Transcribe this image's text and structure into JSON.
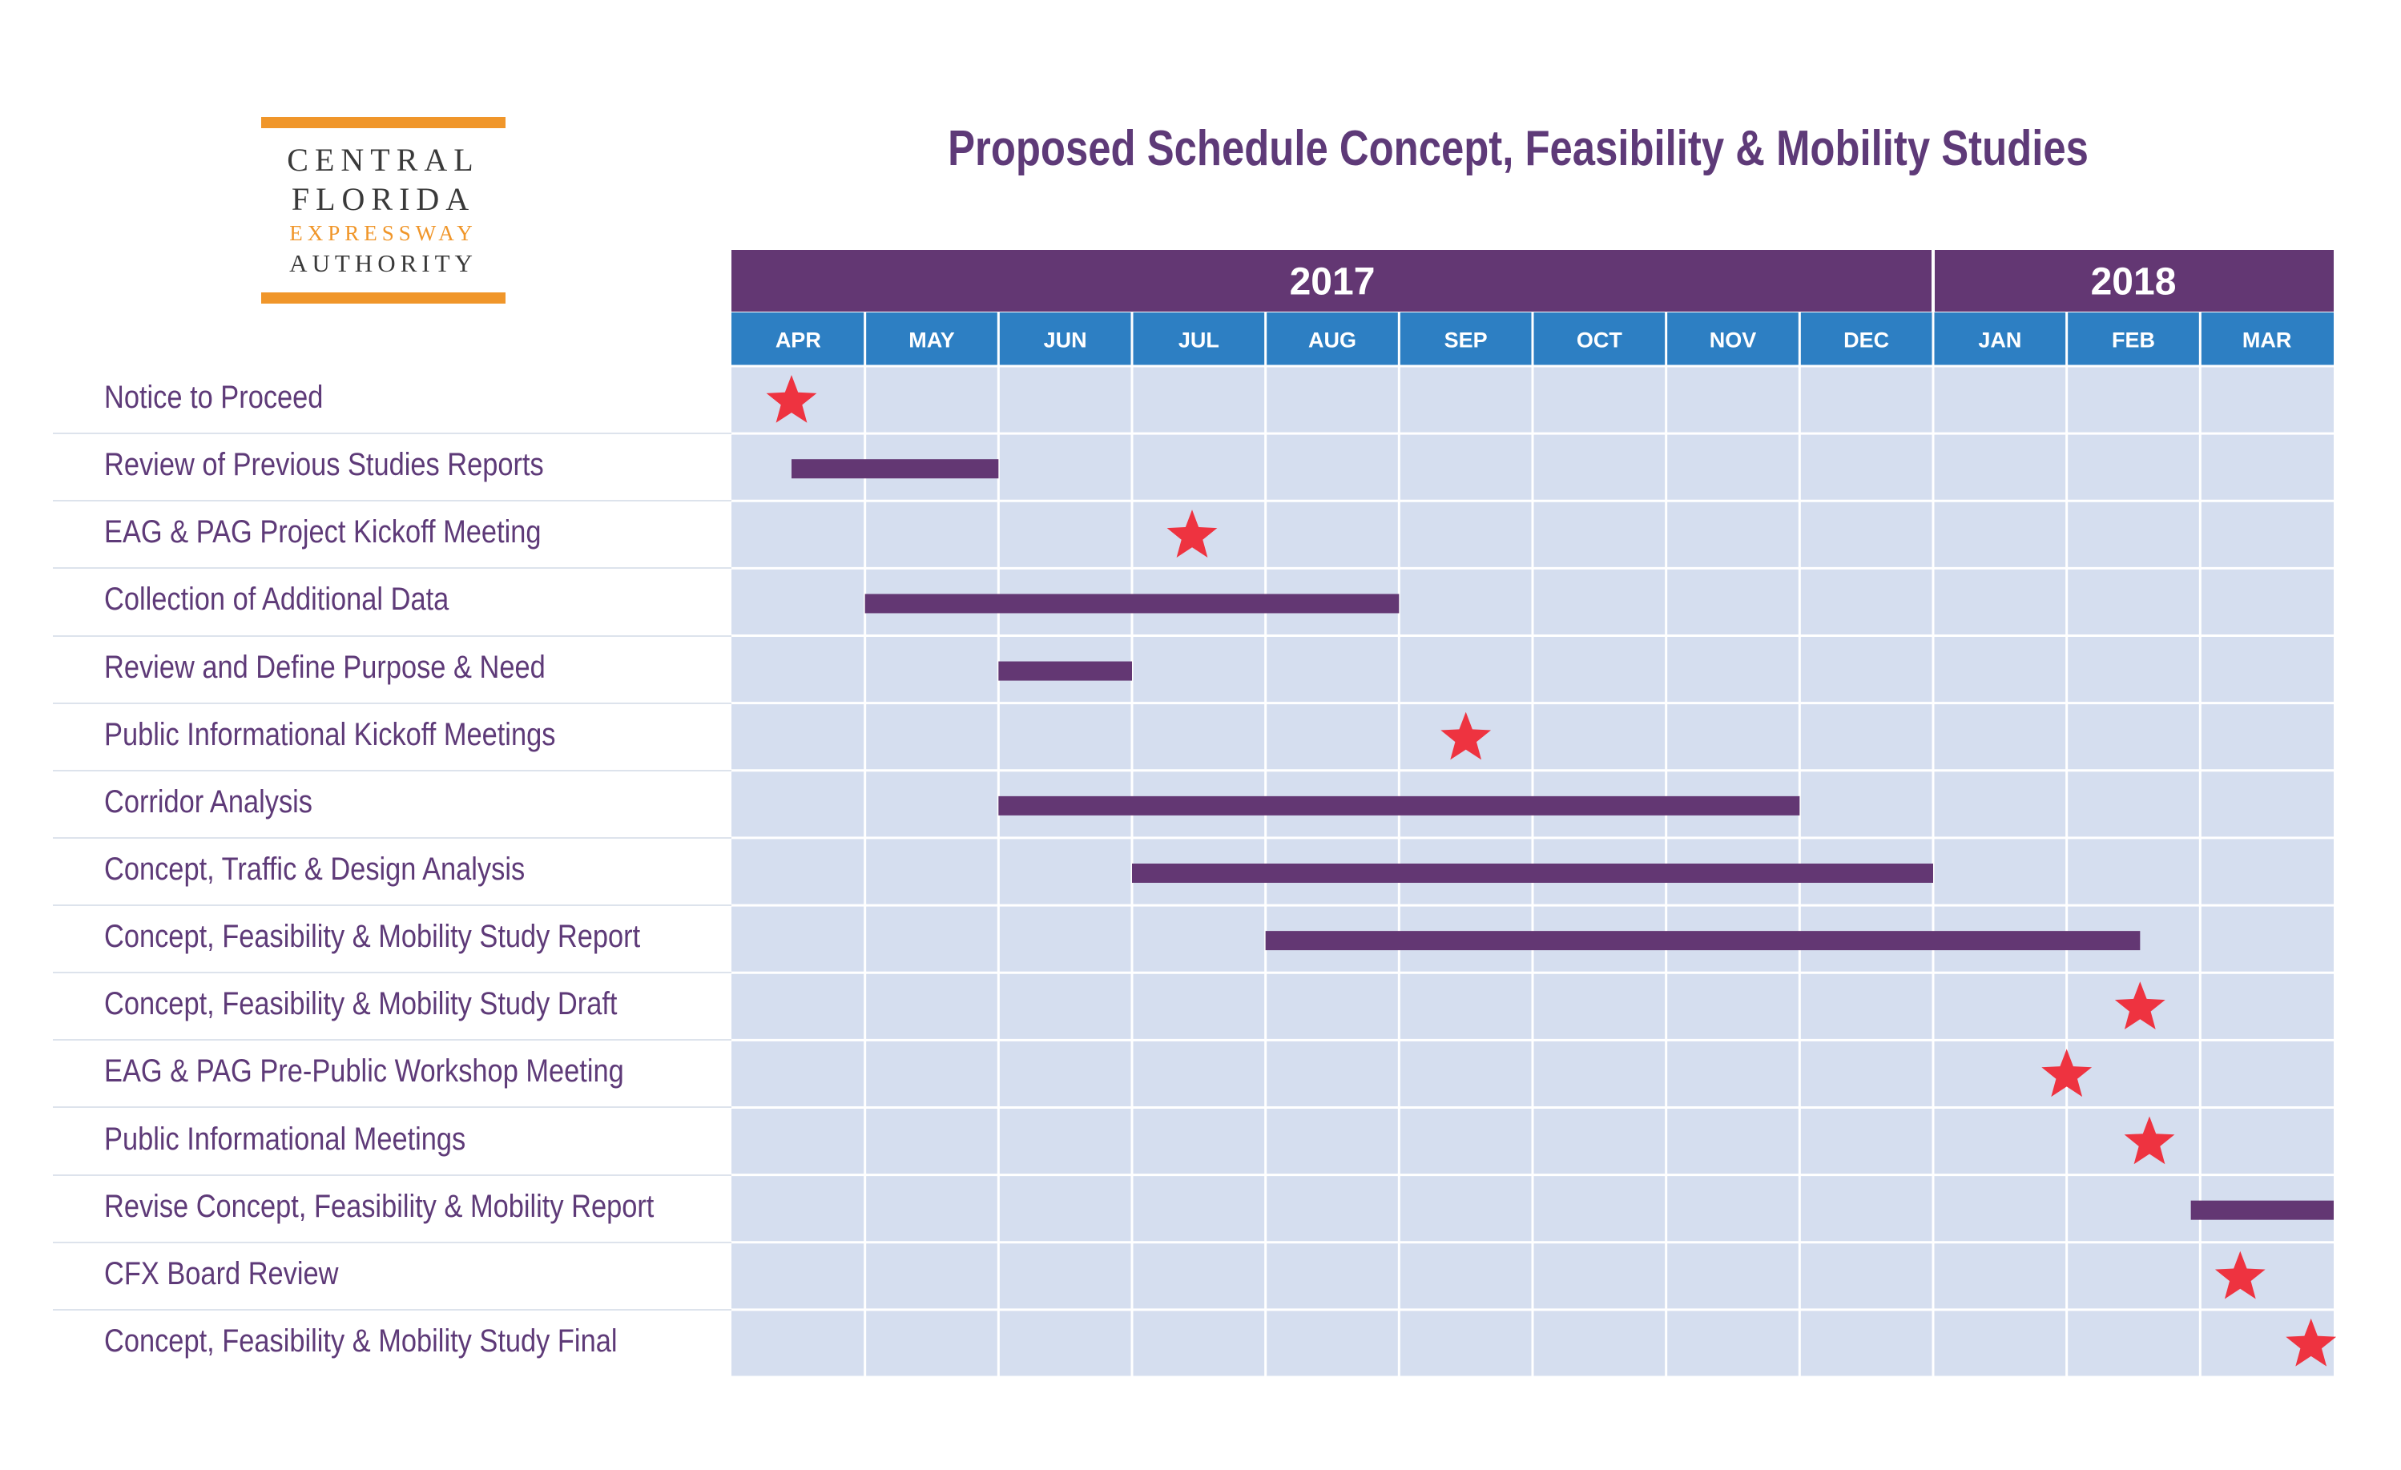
{
  "logo": {
    "line1": "CENTRAL",
    "line2": "FLORIDA",
    "line3": "EXPRESSWAY",
    "line4": "AUTHORITY"
  },
  "colors": {
    "purple": "#633773",
    "header_blue": "#2d7fc3",
    "grid_fill": "#d5deef",
    "grid_line": "#ffffff",
    "star_red": "#ee3340",
    "label_purple": "#5e3a78",
    "logo_orange": "#f0962a"
  },
  "chart_data": {
    "type": "gantt",
    "title": "Proposed Schedule Concept, Feasibility & Mobility Studies",
    "years": [
      {
        "label": "2017",
        "months": 9
      },
      {
        "label": "2018",
        "months": 3
      }
    ],
    "months": [
      "APR",
      "MAY",
      "JUN",
      "JUL",
      "AUG",
      "SEP",
      "OCT",
      "NOV",
      "DEC",
      "JAN",
      "FEB",
      "MAR"
    ],
    "tasks": [
      {
        "name": "Notice to Proceed",
        "type": "milestone",
        "at": 0.45
      },
      {
        "name": "Review of Previous Studies Reports",
        "type": "bar",
        "start": 0.45,
        "end": 2.0
      },
      {
        "name": "EAG & PAG Project Kickoff  Meeting",
        "type": "milestone",
        "at": 3.45
      },
      {
        "name": "Collection of Additional Data",
        "type": "bar",
        "start": 1.0,
        "end": 5.0
      },
      {
        "name": "Review and Define Purpose & Need",
        "type": "bar",
        "start": 2.0,
        "end": 3.0
      },
      {
        "name": "Public Informational Kickoff Meetings",
        "type": "milestone",
        "at": 5.5
      },
      {
        "name": "Corridor Analysis",
        "type": "bar",
        "start": 2.0,
        "end": 8.0
      },
      {
        "name": "Concept, Traffic & Design Analysis",
        "type": "bar",
        "start": 3.0,
        "end": 9.0
      },
      {
        "name": "Concept, Feasibility & Mobility Study Report",
        "type": "bar",
        "start": 4.0,
        "end": 10.55
      },
      {
        "name": "Concept, Feasibility & Mobility Study Draft",
        "type": "milestone",
        "at": 10.55
      },
      {
        "name": "EAG & PAG Pre-Public Workshop Meeting",
        "type": "milestone",
        "at": 10.0
      },
      {
        "name": "Public Informational Meetings",
        "type": "milestone",
        "at": 10.62
      },
      {
        "name": "Revise Concept, Feasibility & Mobility Report",
        "type": "bar",
        "start": 10.93,
        "end": 12.0
      },
      {
        "name": "CFX Board Review",
        "type": "milestone",
        "at": 11.3
      },
      {
        "name": "Concept, Feasibility & Mobility Study Final",
        "type": "milestone",
        "at": 11.83
      }
    ]
  }
}
